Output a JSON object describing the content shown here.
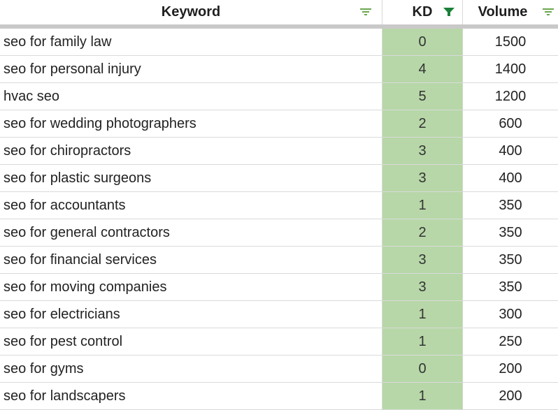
{
  "header": {
    "keyword": "Keyword",
    "kd": "KD",
    "volume": "Volume"
  },
  "colors": {
    "kd_fill": "#b7d7a8",
    "filter_active": "#188038",
    "filter_inactive": "#6aa84f",
    "gridline": "#dadada",
    "freeze_bar": "#c9c9c9"
  },
  "icons": {
    "keyword_filter": "filter-lines-icon",
    "kd_filter": "funnel-filled-icon",
    "volume_filter": "filter-lines-icon"
  },
  "rows": [
    {
      "keyword": "seo for family law",
      "kd": "0",
      "volume": "1500"
    },
    {
      "keyword": "seo for personal injury",
      "kd": "4",
      "volume": "1400"
    },
    {
      "keyword": "hvac seo",
      "kd": "5",
      "volume": "1200"
    },
    {
      "keyword": "seo for wedding photographers",
      "kd": "2",
      "volume": "600"
    },
    {
      "keyword": "seo for chiropractors",
      "kd": "3",
      "volume": "400"
    },
    {
      "keyword": "seo for plastic surgeons",
      "kd": "3",
      "volume": "400"
    },
    {
      "keyword": "seo for accountants",
      "kd": "1",
      "volume": "350"
    },
    {
      "keyword": "seo for general contractors",
      "kd": "2",
      "volume": "350"
    },
    {
      "keyword": "seo for financial services",
      "kd": "3",
      "volume": "350"
    },
    {
      "keyword": "seo for moving companies",
      "kd": "3",
      "volume": "350"
    },
    {
      "keyword": "seo for electricians",
      "kd": "1",
      "volume": "300"
    },
    {
      "keyword": "seo for pest control",
      "kd": "1",
      "volume": "250"
    },
    {
      "keyword": "seo for gyms",
      "kd": "0",
      "volume": "200"
    },
    {
      "keyword": "seo for landscapers",
      "kd": "1",
      "volume": "200"
    }
  ]
}
